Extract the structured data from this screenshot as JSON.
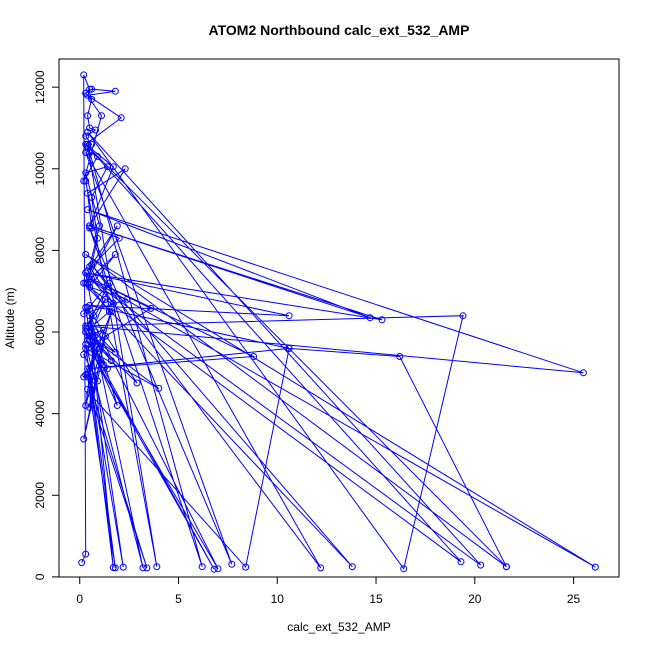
{
  "chart_data": {
    "type": "line",
    "title": "ATOM2 Northbound calc_ext_532_AMP",
    "xlabel": "calc_ext_532_AMP",
    "ylabel": "Altitude (m)",
    "xlim": [
      -1.05,
      27.3
    ],
    "ylim": [
      -2.3,
      12690
    ],
    "xticks": [
      0,
      5,
      10,
      15,
      20,
      25
    ],
    "yticks": [
      0,
      2000,
      4000,
      6000,
      8000,
      10000,
      12000
    ],
    "xtick_labels": [
      "0",
      "5",
      "10",
      "15",
      "20",
      "25"
    ],
    "ytick_labels": [
      "0",
      "2000",
      "4000",
      "6000",
      "8000",
      "10000",
      "12000"
    ],
    "grid": false,
    "marker": "open-circle",
    "series_color": "#0000FF",
    "series": [
      {
        "x": [
          0.1,
          0.3,
          0.2,
          0.5,
          0.3,
          0.6,
          0.4,
          0.5,
          0.8,
          0.3,
          0.6,
          0.4,
          0.5,
          0.9,
          0.2,
          1.1,
          0.3,
          0.6,
          1.8,
          0.4,
          2.1,
          0.3,
          1.7,
          0.5,
          2.3,
          0.4,
          0.6,
          2.0,
          0.4,
          1.9,
          0.3,
          1.8,
          0.5,
          2.4,
          0.2,
          1.5,
          0.3,
          1.3,
          0.5,
          1.8,
          0.4,
          1.6,
          0.3,
          1.2,
          0.5,
          1.4,
          0.2,
          1.0,
          0.4,
          1.6,
          0.3,
          0.8,
          0.5,
          1.3,
          0.2,
          1.1,
          0.3,
          1.5,
          0.4,
          0.9,
          0.6,
          1.4,
          0.3,
          1.0,
          0.5,
          1.7,
          0.3,
          0.7,
          0.4,
          1.2,
          0.2,
          0.9,
          0.3,
          0.6,
          0.4
        ],
        "y": [
          350,
          560,
          12300,
          11950,
          11850,
          11700,
          11300,
          11000,
          10950,
          10800,
          10600,
          10500,
          10400,
          10300,
          9700,
          11300,
          11850,
          11950,
          11900,
          11800,
          11250,
          10600,
          10050,
          8600,
          10000,
          9400,
          8550,
          8300,
          7500,
          8600,
          7200,
          7900,
          7100,
          6800,
          6450,
          7200,
          6100,
          6800,
          5900,
          5500,
          6150,
          5300,
          6000,
          5200,
          5800,
          5100,
          4900,
          5600,
          4950,
          6500,
          4200,
          6000,
          4150,
          5900,
          3380,
          5250,
          6000,
          6500,
          7200,
          8300,
          9300,
          10050,
          9900,
          8600,
          7600,
          6700,
          7450,
          6400,
          5900,
          6050,
          5450,
          4800,
          4950,
          4700,
          4600
        ]
      },
      {
        "x": [
          0.3,
          3.9,
          0.4,
          6.2,
          0.5,
          7.7,
          0.3,
          12.2,
          0.6,
          13.8,
          0.2,
          19.3,
          0.4,
          21.6,
          0.3,
          26.1,
          0.5,
          20.3,
          0.4,
          16.4,
          19.4,
          0.3,
          25.5,
          0.4,
          14.7,
          0.5,
          15.3,
          0.3,
          10.6,
          0.5,
          10.6,
          0.4,
          8.8,
          0.6,
          3.6,
          0.3,
          4.0,
          0.5,
          2.9,
          0.4,
          3.2,
          0.3,
          1.7,
          0.5,
          1.9,
          0.4,
          6.8,
          0.6,
          7.0,
          0.3,
          2.2,
          0.5,
          1.8,
          0.4,
          3.4,
          0.5,
          8.4,
          10.6,
          16.2,
          21.6
        ],
        "y": [
          9700,
          250,
          10600,
          250,
          8550,
          310,
          10400,
          220,
          7650,
          250,
          7200,
          370,
          10550,
          250,
          7900,
          240,
          7300,
          290,
          10900,
          200,
          6400,
          6150,
          5000,
          9000,
          6350,
          8600,
          6300,
          7450,
          6400,
          6650,
          5600,
          5100,
          5400,
          7300,
          6580,
          5600,
          4620,
          5900,
          4750,
          6600,
          220,
          5700,
          230,
          6400,
          4200,
          5800,
          190,
          5500,
          200,
          6600,
          240,
          5100,
          220,
          4900,
          220,
          4500,
          240,
          5600,
          5400,
          250
        ]
      }
    ]
  }
}
